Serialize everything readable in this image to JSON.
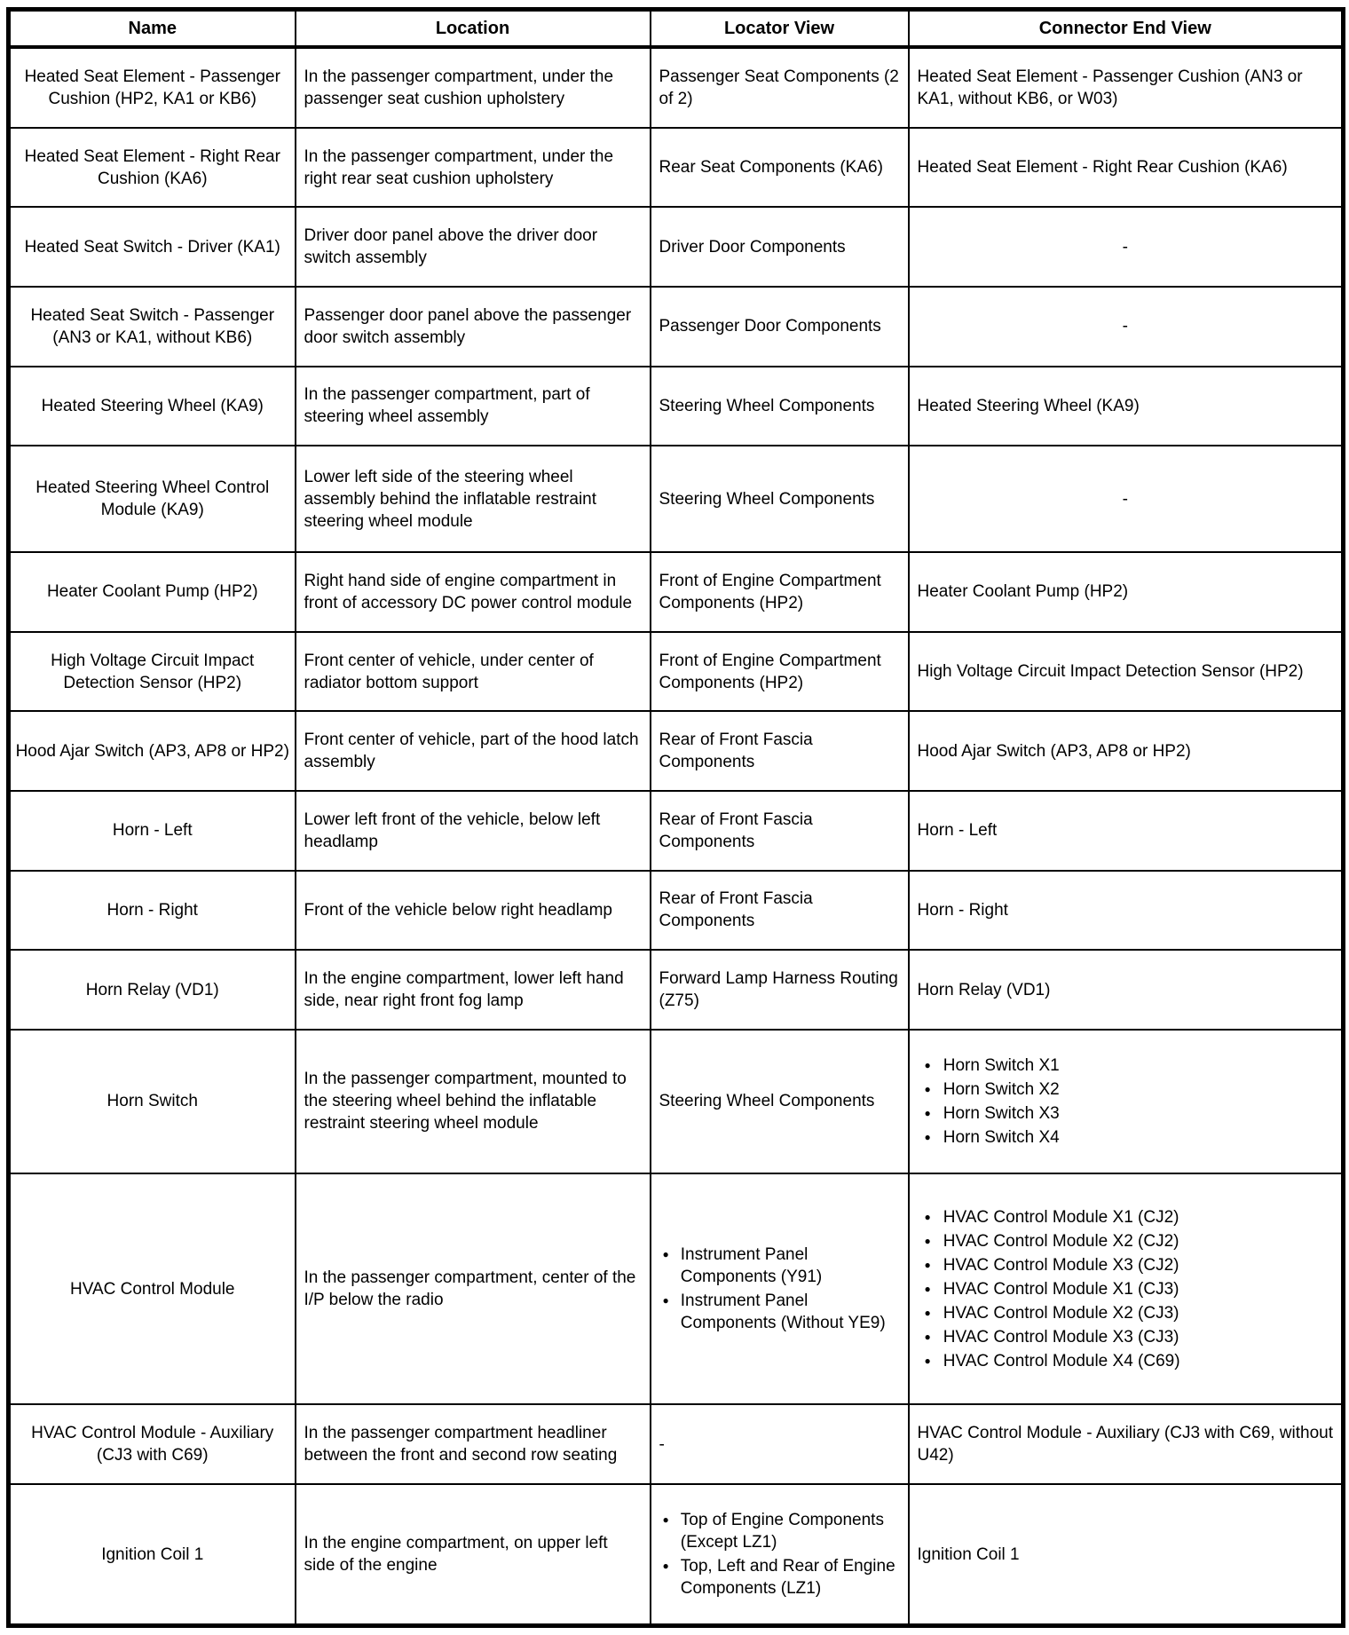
{
  "table": {
    "columns": [
      "Name",
      "Location",
      "Locator View",
      "Connector End View"
    ],
    "rows": [
      {
        "name": "Heated Seat Element - Passenger Cushion (HP2, KA1 or KB6)",
        "location": "In the passenger compartment, under the passenger seat cushion upholstery",
        "locator": "Passenger Seat Components (2 of 2)",
        "connector": "Heated Seat Element - Passenger Cushion (AN3 or KA1, without KB6, or W03)"
      },
      {
        "name": "Heated Seat Element - Right Rear Cushion (KA6)",
        "location": "In the passenger compartment, under the right rear seat cushion upholstery",
        "locator": "Rear Seat Components (KA6)",
        "connector": "Heated Seat Element - Right Rear Cushion (KA6)"
      },
      {
        "name": "Heated Seat Switch - Driver (KA1)",
        "location": "Driver door panel above the driver door switch assembly",
        "locator": "Driver Door Components",
        "connector": {
          "dash": "center",
          "value": "-"
        }
      },
      {
        "name": "Heated Seat Switch - Passenger (AN3 or KA1, without KB6)",
        "location": "Passenger door panel above the passenger door switch assembly",
        "locator": "Passenger Door Components",
        "connector": {
          "dash": "center",
          "value": "-"
        }
      },
      {
        "name": "Heated Steering Wheel (KA9)",
        "location": "In the passenger compartment, part of steering wheel assembly",
        "locator": "Steering Wheel Components",
        "connector": "Heated Steering Wheel (KA9)"
      },
      {
        "name": "Heated Steering Wheel Control Module (KA9)",
        "location": "Lower left side of the steering wheel assembly behind the inflatable restraint steering wheel module",
        "locator": "Steering Wheel Components",
        "connector": {
          "dash": "center",
          "value": "-"
        }
      },
      {
        "name": "Heater Coolant Pump (HP2)",
        "location": "Right hand side of engine compartment in front of accessory DC power control module",
        "locator": "Front of Engine Compartment Components (HP2)",
        "connector": "Heater Coolant Pump (HP2)"
      },
      {
        "name": "High Voltage Circuit Impact Detection Sensor (HP2)",
        "location": "Front center of vehicle, under center of radiator bottom support",
        "locator": "Front of Engine Compartment Components (HP2)",
        "connector": "High Voltage Circuit Impact Detection Sensor (HP2)"
      },
      {
        "name": "Hood Ajar Switch (AP3, AP8 or HP2)",
        "location": "Front center of vehicle, part of the hood latch assembly",
        "locator": "Rear of Front Fascia Components",
        "connector": "Hood Ajar Switch (AP3, AP8 or HP2)"
      },
      {
        "name": "Horn - Left",
        "location": "Lower left front of the vehicle, below left headlamp",
        "locator": "Rear of Front Fascia Components",
        "connector": "Horn - Left"
      },
      {
        "name": "Horn - Right",
        "location": "Front of the vehicle below right headlamp",
        "locator": "Rear of Front Fascia Components",
        "connector": "Horn - Right"
      },
      {
        "name": "Horn Relay (VD1)",
        "location": "In the engine compartment, lower left hand side, near right front fog lamp",
        "locator": "Forward Lamp Harness Routing (Z75)",
        "connector": "Horn Relay (VD1)"
      },
      {
        "name": "Horn Switch",
        "location": "In the passenger compartment, mounted to the steering wheel behind the inflatable restraint steering wheel module",
        "locator": "Steering Wheel Components",
        "connector": {
          "list": [
            "Horn Switch X1",
            "Horn Switch X2",
            "Horn Switch X3",
            "Horn Switch X4"
          ]
        }
      },
      {
        "name": "HVAC Control Module",
        "location": "In the passenger compartment, center of the I/P below the radio",
        "locator": {
          "list": [
            "Instrument Panel Components (Y91)",
            "Instrument Panel Components (Without YE9)"
          ]
        },
        "connector": {
          "list": [
            "HVAC Control Module X1 (CJ2)",
            "HVAC Control Module X2 (CJ2)",
            "HVAC Control Module X3 (CJ2)",
            "HVAC Control Module X1 (CJ3)",
            "HVAC Control Module X2 (CJ3)",
            "HVAC Control Module X3 (CJ3)",
            "HVAC Control Module X4 (C69)"
          ]
        }
      },
      {
        "name": "HVAC Control Module - Auxiliary (CJ3 with C69)",
        "location": "In the passenger compartment headliner between the front and second row seating",
        "locator": {
          "dash": "left",
          "value": "-"
        },
        "connector": "HVAC Control Module - Auxiliary (CJ3 with C69, without U42)"
      },
      {
        "name": "Ignition Coil 1",
        "location": "In the engine compartment, on upper left side of the engine",
        "locator": {
          "list": [
            "Top of Engine Components (Except LZ1)",
            "Top, Left and Rear of Engine Components (LZ1)"
          ]
        },
        "connector": "Ignition Coil 1"
      }
    ]
  }
}
